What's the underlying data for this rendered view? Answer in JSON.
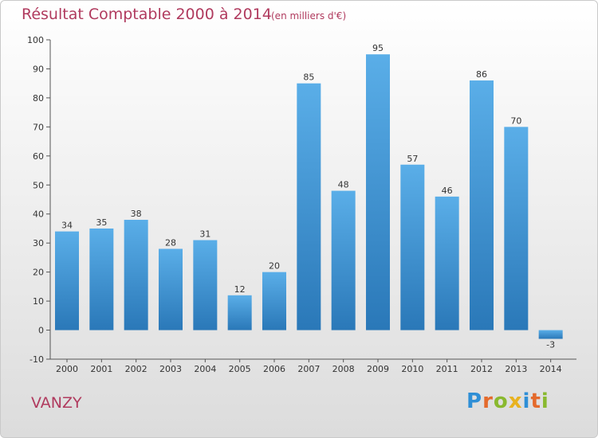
{
  "chart_data": {
    "type": "bar",
    "title": "Résultat Comptable 2000 à 2014",
    "subtitle": "(en milliers d'€)",
    "categories": [
      "2000",
      "2001",
      "2002",
      "2003",
      "2004",
      "2005",
      "2006",
      "2007",
      "2008",
      "2009",
      "2010",
      "2011",
      "2012",
      "2013",
      "2014"
    ],
    "values": [
      34,
      35,
      38,
      28,
      31,
      12,
      20,
      85,
      48,
      95,
      57,
      46,
      86,
      70,
      -3
    ],
    "ylim": [
      -10,
      100
    ],
    "yticks": [
      -10,
      0,
      10,
      20,
      30,
      40,
      50,
      60,
      70,
      80,
      90,
      100
    ],
    "grid": false,
    "bar_color_top": "#5aaee8",
    "bar_color_bottom": "#2a78b8"
  },
  "footer": {
    "commune": "VANZY",
    "logo_text": "Proxiti",
    "logo_letters": [
      {
        "ch": "P",
        "color": "#2f8fd6"
      },
      {
        "ch": "r",
        "color": "#e46a2c"
      },
      {
        "ch": "o",
        "color": "#89b92f"
      },
      {
        "ch": "x",
        "color": "#e8b21f"
      },
      {
        "ch": "i",
        "color": "#2f8fd6"
      },
      {
        "ch": "t",
        "color": "#e46a2c"
      },
      {
        "ch": "i",
        "color": "#89b92f"
      }
    ]
  }
}
